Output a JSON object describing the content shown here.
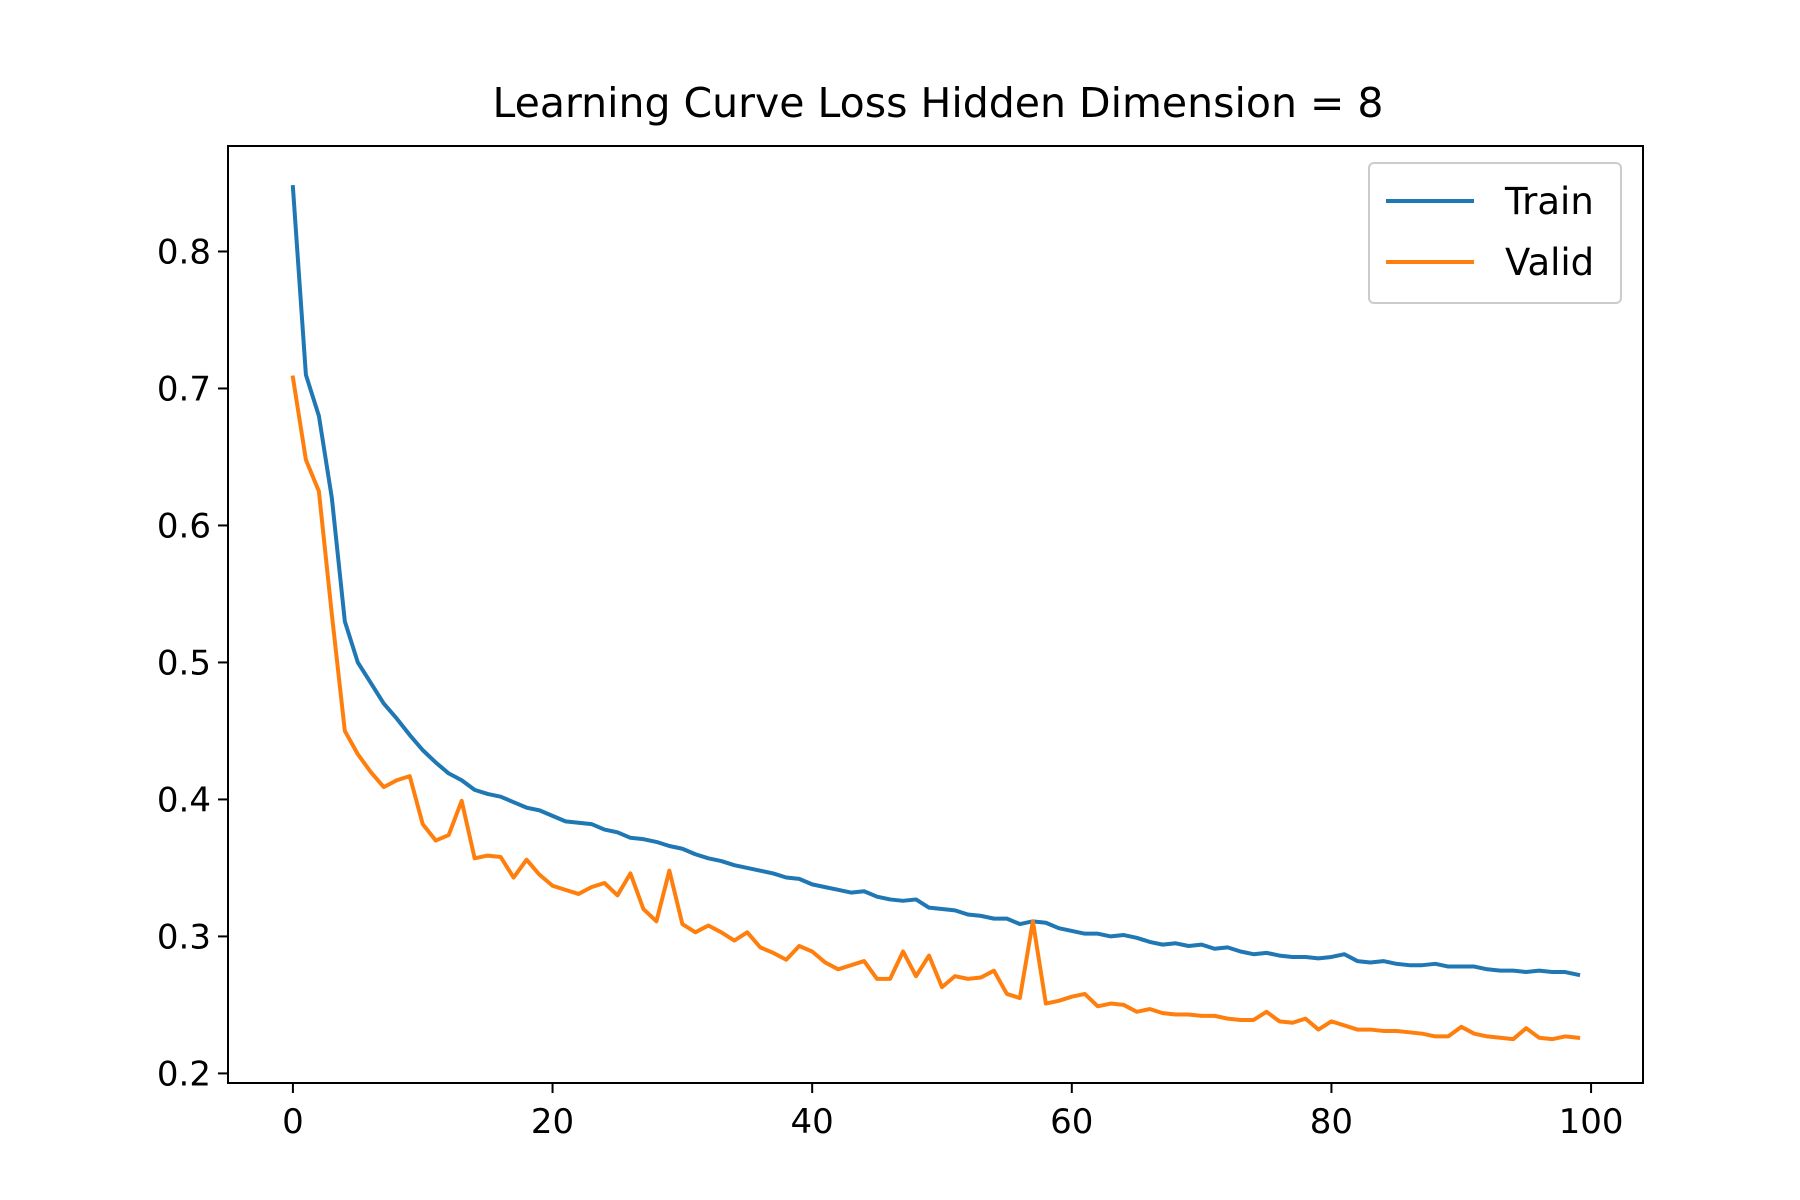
{
  "chart_data": {
    "type": "line",
    "title": "Learning Curve Loss Hidden Dimension = 8",
    "xlabel": "",
    "ylabel": "",
    "xlim": [
      -5,
      104
    ],
    "ylim": [
      0.193,
      0.877
    ],
    "xticks": [
      0,
      20,
      40,
      60,
      80,
      100
    ],
    "yticks": [
      0.2,
      0.3,
      0.4,
      0.5,
      0.6,
      0.7,
      0.8
    ],
    "xtick_labels": [
      "0",
      "20",
      "40",
      "60",
      "80",
      "100"
    ],
    "ytick_labels": [
      "0.2",
      "0.3",
      "0.4",
      "0.5",
      "0.6",
      "0.7",
      "0.8"
    ],
    "grid": false,
    "legend_position": "top-right",
    "series": [
      {
        "name": "Train",
        "color": "#1f77b4",
        "x": [
          0,
          1,
          2,
          3,
          4,
          5,
          6,
          7,
          8,
          9,
          10,
          11,
          12,
          13,
          14,
          15,
          16,
          17,
          18,
          19,
          20,
          21,
          22,
          23,
          24,
          25,
          26,
          27,
          28,
          29,
          30,
          31,
          32,
          33,
          34,
          35,
          36,
          37,
          38,
          39,
          40,
          41,
          42,
          43,
          44,
          45,
          46,
          47,
          48,
          49,
          50,
          51,
          52,
          53,
          54,
          55,
          56,
          57,
          58,
          59,
          60,
          61,
          62,
          63,
          64,
          65,
          66,
          67,
          68,
          69,
          70,
          71,
          72,
          73,
          74,
          75,
          76,
          77,
          78,
          79,
          80,
          81,
          82,
          83,
          84,
          85,
          86,
          87,
          88,
          89,
          90,
          91,
          92,
          93,
          94,
          95,
          96,
          97,
          98,
          99
        ],
        "values": [
          0.847,
          0.71,
          0.68,
          0.62,
          0.53,
          0.5,
          0.485,
          0.47,
          0.459,
          0.447,
          0.436,
          0.427,
          0.419,
          0.414,
          0.407,
          0.404,
          0.402,
          0.398,
          0.394,
          0.392,
          0.388,
          0.384,
          0.383,
          0.382,
          0.378,
          0.376,
          0.372,
          0.371,
          0.369,
          0.366,
          0.364,
          0.36,
          0.357,
          0.355,
          0.352,
          0.35,
          0.348,
          0.346,
          0.343,
          0.342,
          0.338,
          0.336,
          0.334,
          0.332,
          0.333,
          0.329,
          0.327,
          0.326,
          0.327,
          0.321,
          0.32,
          0.319,
          0.316,
          0.315,
          0.313,
          0.313,
          0.309,
          0.311,
          0.31,
          0.306,
          0.304,
          0.302,
          0.302,
          0.3,
          0.301,
          0.299,
          0.296,
          0.294,
          0.295,
          0.293,
          0.294,
          0.291,
          0.292,
          0.289,
          0.287,
          0.288,
          0.286,
          0.285,
          0.285,
          0.284,
          0.285,
          0.287,
          0.282,
          0.281,
          0.282,
          0.28,
          0.279,
          0.279,
          0.28,
          0.278,
          0.278,
          0.278,
          0.276,
          0.275,
          0.275,
          0.274,
          0.275,
          0.274,
          0.274,
          0.272
        ]
      },
      {
        "name": "Valid",
        "color": "#ff7f0e",
        "x": [
          0,
          1,
          2,
          3,
          4,
          5,
          6,
          7,
          8,
          9,
          10,
          11,
          12,
          13,
          14,
          15,
          16,
          17,
          18,
          19,
          20,
          21,
          22,
          23,
          24,
          25,
          26,
          27,
          28,
          29,
          30,
          31,
          32,
          33,
          34,
          35,
          36,
          37,
          38,
          39,
          40,
          41,
          42,
          43,
          44,
          45,
          46,
          47,
          48,
          49,
          50,
          51,
          52,
          53,
          54,
          55,
          56,
          57,
          58,
          59,
          60,
          61,
          62,
          63,
          64,
          65,
          66,
          67,
          68,
          69,
          70,
          71,
          72,
          73,
          74,
          75,
          76,
          77,
          78,
          79,
          80,
          81,
          82,
          83,
          84,
          85,
          86,
          87,
          88,
          89,
          90,
          91,
          92,
          93,
          94,
          95,
          96,
          97,
          98,
          99
        ],
        "values": [
          0.708,
          0.648,
          0.625,
          0.535,
          0.45,
          0.433,
          0.42,
          0.409,
          0.414,
          0.417,
          0.382,
          0.37,
          0.374,
          0.399,
          0.357,
          0.359,
          0.358,
          0.343,
          0.356,
          0.345,
          0.337,
          0.334,
          0.331,
          0.336,
          0.339,
          0.33,
          0.346,
          0.32,
          0.311,
          0.348,
          0.309,
          0.303,
          0.308,
          0.303,
          0.297,
          0.303,
          0.292,
          0.288,
          0.283,
          0.293,
          0.289,
          0.281,
          0.276,
          0.279,
          0.282,
          0.269,
          0.269,
          0.289,
          0.271,
          0.286,
          0.263,
          0.271,
          0.269,
          0.27,
          0.275,
          0.258,
          0.255,
          0.311,
          0.251,
          0.253,
          0.256,
          0.258,
          0.249,
          0.251,
          0.25,
          0.245,
          0.247,
          0.244,
          0.243,
          0.243,
          0.242,
          0.242,
          0.24,
          0.239,
          0.239,
          0.245,
          0.238,
          0.237,
          0.24,
          0.232,
          0.238,
          0.235,
          0.232,
          0.232,
          0.231,
          0.231,
          0.23,
          0.229,
          0.227,
          0.227,
          0.234,
          0.229,
          0.227,
          0.226,
          0.225,
          0.233,
          0.226,
          0.225,
          0.227,
          0.226
        ]
      }
    ]
  }
}
